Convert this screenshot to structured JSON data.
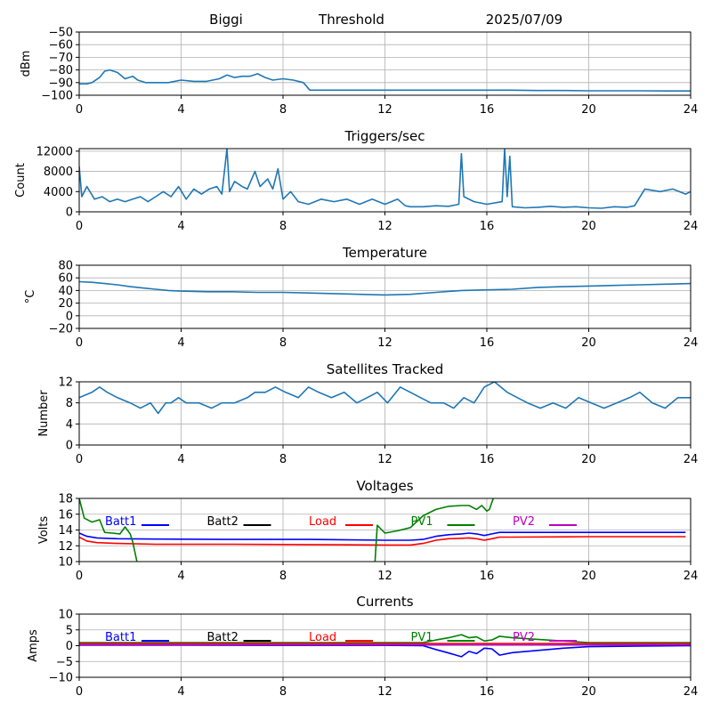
{
  "figure": {
    "header": {
      "station": "Biggi",
      "label": "Threshold",
      "date": "2025/07/09"
    },
    "colors": {
      "series": "#1f77b4",
      "batt1": "#0000ff",
      "batt2": "#000000",
      "load": "#ff0000",
      "pv1": "#008000",
      "pv2": "#bf00bf"
    }
  },
  "chart_data": [
    {
      "id": "threshold",
      "type": "line",
      "title": "",
      "ylabel": "dBm",
      "xlim": [
        0,
        24
      ],
      "ylim": [
        -100,
        -50
      ],
      "xticks": [
        "0",
        "4",
        "8",
        "12",
        "16",
        "20",
        "24"
      ],
      "yticks": [
        "−50",
        "−60",
        "−70",
        "−80",
        "−90",
        "−100"
      ],
      "series": [
        {
          "color": "#1f77b4",
          "x": [
            0,
            0.3,
            0.5,
            0.8,
            1.0,
            1.2,
            1.5,
            1.8,
            2.1,
            2.3,
            2.6,
            3,
            3.5,
            4,
            4.5,
            5,
            5.5,
            5.8,
            6.1,
            6.4,
            6.7,
            7,
            7.3,
            7.6,
            8,
            8.4,
            8.8,
            9.05,
            9.5,
            10,
            11,
            12,
            13,
            14,
            15,
            16,
            17,
            18,
            19,
            20,
            21,
            22,
            23,
            24
          ],
          "y": [
            -91,
            -91,
            -90,
            -86,
            -81,
            -80,
            -82,
            -87,
            -85,
            -88,
            -90,
            -90,
            -90,
            -88,
            -89,
            -89,
            -87,
            -84,
            -86,
            -85,
            -85,
            -83,
            -86,
            -88,
            -87,
            -88,
            -90,
            -96,
            -96,
            -96,
            -96,
            -96,
            -96,
            -96,
            -96,
            -96,
            -96,
            -96.3,
            -96.3,
            -96.5,
            -96.5,
            -96.5,
            -96.6,
            -96.6
          ]
        }
      ]
    },
    {
      "id": "triggers",
      "type": "line",
      "title": "Triggers/sec",
      "ylabel": "Count",
      "xlim": [
        0,
        24
      ],
      "ylim": [
        0,
        12500
      ],
      "xticks": [
        "0",
        "4",
        "8",
        "12",
        "16",
        "20",
        "24"
      ],
      "yticks": [
        "0",
        "4000",
        "8000",
        "12000"
      ],
      "series": [
        {
          "color": "#1f77b4",
          "x": [
            0,
            0.1,
            0.3,
            0.6,
            0.9,
            1.2,
            1.5,
            1.8,
            2.1,
            2.4,
            2.7,
            3.0,
            3.3,
            3.6,
            3.9,
            4.2,
            4.5,
            4.8,
            5.1,
            5.4,
            5.6,
            5.8,
            5.9,
            6.1,
            6.4,
            6.6,
            6.9,
            7.1,
            7.4,
            7.6,
            7.8,
            8.0,
            8.3,
            8.6,
            9.0,
            9.5,
            10.0,
            10.5,
            11.0,
            11.5,
            12.0,
            12.5,
            12.8,
            13.0,
            13.5,
            14.0,
            14.5,
            14.9,
            15.0,
            15.1,
            15.5,
            16.0,
            16.6,
            16.7,
            16.8,
            16.9,
            17.0,
            17.5,
            18.0,
            18.5,
            19.0,
            19.5,
            20.0,
            20.5,
            21.0,
            21.5,
            21.8,
            22.2,
            22.8,
            23.3,
            23.8,
            24.0
          ],
          "y": [
            9000,
            3000,
            5000,
            2500,
            3000,
            2000,
            2500,
            2000,
            2500,
            3000,
            2000,
            3000,
            4000,
            3000,
            5000,
            2500,
            4500,
            3500,
            4500,
            5000,
            3500,
            12500,
            4000,
            6000,
            5000,
            4500,
            8000,
            5000,
            6500,
            4500,
            8500,
            2500,
            4000,
            2000,
            1500,
            2500,
            2000,
            2500,
            1500,
            2500,
            1500,
            2500,
            1200,
            1000,
            1000,
            1200,
            1100,
            1500,
            11500,
            3000,
            2000,
            1500,
            2000,
            12500,
            3000,
            11000,
            1000,
            800,
            900,
            1100,
            900,
            1000,
            800,
            700,
            1000,
            900,
            1200,
            4500,
            4000,
            4500,
            3500,
            4000
          ]
        }
      ]
    },
    {
      "id": "temperature",
      "type": "line",
      "title": "Temperature",
      "ylabel": "°C",
      "xlim": [
        0,
        24
      ],
      "ylim": [
        -20,
        80
      ],
      "xticks": [
        "0",
        "4",
        "8",
        "12",
        "16",
        "20",
        "24"
      ],
      "yticks": [
        "80",
        "60",
        "40",
        "20",
        "0",
        "−20"
      ],
      "series": [
        {
          "color": "#1f77b4",
          "x": [
            0,
            0.5,
            1,
            1.5,
            2,
            2.5,
            3,
            3.5,
            4,
            5,
            6,
            7,
            8,
            9,
            10,
            11,
            12,
            13,
            14,
            15,
            16,
            17,
            18,
            19,
            20,
            21,
            22,
            23,
            24
          ],
          "y": [
            54,
            53,
            51,
            49,
            46,
            44,
            42,
            40,
            39,
            38,
            38,
            37,
            37,
            36,
            35,
            34,
            33,
            34,
            37,
            40,
            41,
            42,
            45,
            46,
            47,
            48,
            49,
            50,
            51
          ]
        }
      ]
    },
    {
      "id": "satellites",
      "type": "line",
      "title": "Satellites Tracked",
      "ylabel": "Number",
      "xlim": [
        0,
        24
      ],
      "ylim": [
        0,
        12
      ],
      "xticks": [
        "0",
        "4",
        "8",
        "12",
        "16",
        "20",
        "24"
      ],
      "yticks": [
        "0",
        "4",
        "8",
        "12"
      ],
      "series": [
        {
          "color": "#1f77b4",
          "x": [
            0,
            0.5,
            0.8,
            1.1,
            1.5,
            2.0,
            2.4,
            2.8,
            3.1,
            3.4,
            3.6,
            3.9,
            4.2,
            4.7,
            5.2,
            5.6,
            6.1,
            6.6,
            6.9,
            7.3,
            7.7,
            8.1,
            8.6,
            9.0,
            9.4,
            9.9,
            10.4,
            10.9,
            11.3,
            11.7,
            12.1,
            12.6,
            13.0,
            13.4,
            13.8,
            14.3,
            14.7,
            15.1,
            15.5,
            15.9,
            16.3,
            16.8,
            17.2,
            17.6,
            18.1,
            18.6,
            19.1,
            19.6,
            20.1,
            20.6,
            21.1,
            21.6,
            22.0,
            22.5,
            23.0,
            23.5,
            24.0
          ],
          "y": [
            9,
            10,
            11,
            10,
            9,
            8,
            7,
            8,
            6,
            8,
            8,
            9,
            8,
            8,
            7,
            8,
            8,
            9,
            10,
            10,
            11,
            10,
            9,
            11,
            10,
            9,
            10,
            8,
            9,
            10,
            8,
            11,
            10,
            9,
            8,
            8,
            7,
            9,
            8,
            11,
            12,
            10,
            9,
            8,
            7,
            8,
            7,
            9,
            8,
            7,
            8,
            9,
            10,
            8,
            7,
            9,
            9
          ]
        }
      ]
    },
    {
      "id": "voltages",
      "type": "line",
      "title": "Voltages",
      "ylabel": "Volts",
      "xlim": [
        0,
        24
      ],
      "ylim": [
        10,
        18
      ],
      "xticks": [
        "0",
        "4",
        "8",
        "12",
        "16",
        "20",
        "24"
      ],
      "yticks": [
        "10",
        "12",
        "14",
        "16",
        "18"
      ],
      "legend": [
        {
          "name": "Batt1",
          "color": "#0000ff"
        },
        {
          "name": "Batt2",
          "color": "#000000"
        },
        {
          "name": "Load",
          "color": "#ff0000"
        },
        {
          "name": "PV1",
          "color": "#008000"
        },
        {
          "name": "PV2",
          "color": "#bf00bf"
        }
      ],
      "series": [
        {
          "name": "Batt1",
          "color": "#0000ff",
          "x": [
            0,
            0.3,
            0.7,
            1.5,
            3,
            6,
            9,
            12,
            13,
            13.5,
            14,
            14.5,
            15,
            15.3,
            15.6,
            15.9,
            16.2,
            16.5,
            17,
            20,
            23.8
          ],
          "y": [
            13.6,
            13.2,
            13.0,
            12.9,
            12.85,
            12.8,
            12.8,
            12.7,
            12.7,
            12.8,
            13.2,
            13.4,
            13.5,
            13.6,
            13.5,
            13.3,
            13.5,
            13.7,
            13.7,
            13.7,
            13.7
          ]
        },
        {
          "name": "Load",
          "color": "#ff0000",
          "x": [
            0,
            0.3,
            0.7,
            1.5,
            3,
            6,
            9,
            12,
            13,
            13.5,
            14,
            14.5,
            15,
            15.3,
            15.6,
            15.9,
            16.2,
            16.5,
            17,
            20,
            23.8
          ],
          "y": [
            13.1,
            12.6,
            12.4,
            12.3,
            12.2,
            12.2,
            12.15,
            12.1,
            12.1,
            12.3,
            12.7,
            12.9,
            12.95,
            13.0,
            12.9,
            12.7,
            12.9,
            13.1,
            13.1,
            13.15,
            13.15
          ]
        },
        {
          "name": "PV1",
          "color": "#008000",
          "x": [
            0,
            0.2,
            0.5,
            0.8,
            1.0,
            1.3,
            1.6,
            1.8,
            2.0,
            2.1,
            2.3,
            11.6,
            11.7,
            12.0,
            12.5,
            13.0,
            13.5,
            14.0,
            14.5,
            15.0,
            15.3,
            15.6,
            15.8,
            16.0,
            16.1,
            16.25
          ],
          "y": [
            18,
            15.5,
            15.0,
            15.3,
            13.7,
            13.6,
            13.5,
            14.4,
            13.5,
            12.5,
            9.5,
            9.5,
            14.6,
            13.6,
            13.9,
            14.3,
            15.8,
            16.6,
            17.0,
            17.1,
            17.1,
            16.6,
            17.1,
            16.4,
            16.6,
            18
          ]
        }
      ]
    },
    {
      "id": "currents",
      "type": "line",
      "title": "Currents",
      "ylabel": "Amps",
      "xlim": [
        0,
        24
      ],
      "ylim": [
        -10,
        10
      ],
      "xticks": [
        "0",
        "4",
        "8",
        "12",
        "16",
        "20",
        "24"
      ],
      "yticks": [
        "−10",
        "−5",
        "0",
        "5",
        "10"
      ],
      "legend": [
        {
          "name": "Batt1",
          "color": "#0000ff"
        },
        {
          "name": "Batt2",
          "color": "#000000"
        },
        {
          "name": "Load",
          "color": "#ff0000"
        },
        {
          "name": "PV1",
          "color": "#008000"
        },
        {
          "name": "PV2",
          "color": "#bf00bf"
        }
      ],
      "series": [
        {
          "name": "PV1",
          "color": "#008000",
          "x": [
            0,
            2,
            4,
            8,
            12,
            13.5,
            14,
            14.5,
            15,
            15.3,
            15.6,
            15.9,
            16.2,
            16.5,
            17,
            18,
            19,
            20,
            22,
            24
          ],
          "y": [
            1,
            1,
            1,
            1,
            1,
            1,
            1.8,
            2.5,
            3.5,
            2.5,
            2.8,
            1.5,
            1.8,
            3,
            2.5,
            2,
            1.5,
            1,
            1,
            1
          ]
        },
        {
          "name": "Batt1",
          "color": "#0000ff",
          "x": [
            0,
            2,
            4,
            8,
            12,
            13.5,
            14,
            14.5,
            15,
            15.3,
            15.6,
            15.9,
            16.2,
            16.5,
            17,
            18,
            19,
            20,
            22,
            24
          ],
          "y": [
            0.2,
            0.2,
            0.2,
            0.1,
            0.1,
            0,
            -1.2,
            -2.3,
            -3.5,
            -1.8,
            -2.5,
            -0.8,
            -1.0,
            -3.0,
            -2.2,
            -1.5,
            -0.8,
            -0.3,
            -0.1,
            0
          ]
        },
        {
          "name": "Load",
          "color": "#ff0000",
          "x": [
            0,
            4,
            8,
            12,
            16,
            20,
            24
          ],
          "y": [
            0.7,
            0.7,
            0.7,
            0.7,
            0.7,
            0.7,
            0.7
          ]
        },
        {
          "name": "PV2",
          "color": "#bf00bf",
          "x": [
            0,
            4,
            8,
            12,
            16,
            20,
            24
          ],
          "y": [
            0.3,
            0.3,
            0.3,
            0.3,
            0.3,
            0.3,
            0.3
          ]
        }
      ]
    }
  ]
}
